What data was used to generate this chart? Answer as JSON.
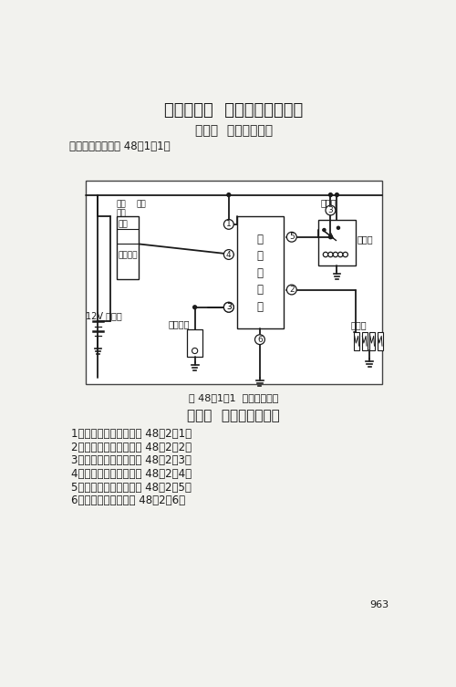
{
  "title": "第四十八章  江铃福特全顺客车",
  "section1_title": "第一节  发动机电路图",
  "section1_desc": "发动机电路图见图 48－1－1。",
  "diagram_caption": "图 48－1－1  发动机电路图",
  "section2_title": "第二节  电气系统电路图",
  "section2_items": [
    "1．空调系统电路图见图 48－2－1。",
    "2．中央门锁电路图见图 48－2－2。",
    "3．前雨刁器电路图见图 48－2－3。",
    "4．后雨刁器电路图见图 48－2－4。",
    "5．电动门窗电路图见图 48－2－5。",
    "6．前大灯电路图见图 48－2－6。"
  ],
  "label_battery": "12V 蓄电池",
  "label_ignition": "点火开关",
  "label_fujian": "附件",
  "label_bihe": "闭合",
  "label_duankai": "断开",
  "label_qidong": "启动",
  "label_preheater": [
    "预",
    "热",
    "定",
    "时",
    "器"
  ],
  "label_temp_switch": "温度开关",
  "label_relay": "继电器",
  "label_indicator": "指示灯",
  "label_glow_plug": "预热塞",
  "page_number": "963",
  "bg_color": "#f2f2ee"
}
